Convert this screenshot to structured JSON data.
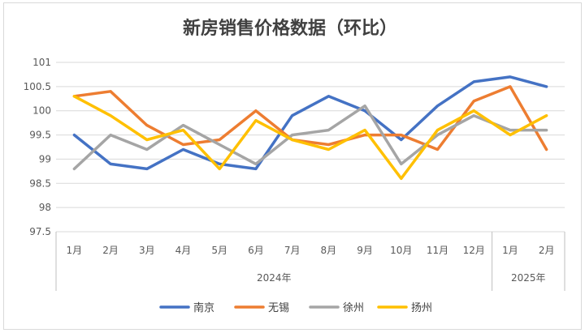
{
  "chart_data": {
    "type": "line",
    "title": "新房销售价格数据（环比）",
    "xlabel": "",
    "ylabel": "",
    "ylim": [
      97.5,
      101
    ],
    "yticks": [
      97.5,
      98,
      98.5,
      99,
      99.5,
      100,
      100.5,
      101
    ],
    "grid": true,
    "legend_position": "bottom",
    "categories": [
      "1月",
      "2月",
      "3月",
      "4月",
      "5月",
      "6月",
      "7月",
      "8月",
      "9月",
      "10月",
      "11月",
      "12月",
      "1月",
      "2月"
    ],
    "year_groups": [
      {
        "label": "2024年",
        "count": 12
      },
      {
        "label": "2025年",
        "count": 2
      }
    ],
    "series": [
      {
        "name": "南京",
        "color": "#4472c4",
        "values": [
          99.5,
          98.9,
          98.8,
          99.2,
          98.9,
          98.8,
          99.9,
          100.3,
          100.0,
          99.4,
          100.1,
          100.6,
          100.7,
          100.5
        ]
      },
      {
        "name": "无锡",
        "color": "#ed7d31",
        "values": [
          100.3,
          100.4,
          99.7,
          99.3,
          99.4,
          100.0,
          99.4,
          99.3,
          99.5,
          99.5,
          99.2,
          100.2,
          100.5,
          99.2
        ]
      },
      {
        "name": "徐州",
        "color": "#a5a5a5",
        "values": [
          98.8,
          99.5,
          99.2,
          99.7,
          99.3,
          98.9,
          99.5,
          99.6,
          100.1,
          98.9,
          99.5,
          99.9,
          99.6,
          99.6
        ]
      },
      {
        "name": "扬州",
        "color": "#ffc000",
        "values": [
          100.3,
          99.9,
          99.4,
          99.6,
          98.8,
          99.8,
          99.4,
          99.2,
          99.6,
          98.6,
          99.6,
          100.0,
          99.5,
          99.9
        ]
      }
    ]
  },
  "colors": {
    "gridline": "#d9d9d9",
    "axis": "#bfbfbf",
    "text": "#595959"
  }
}
